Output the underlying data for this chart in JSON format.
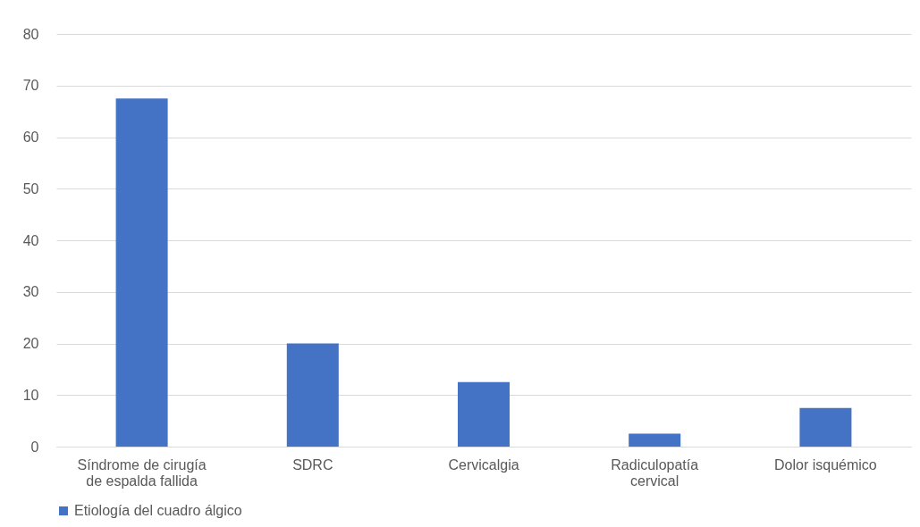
{
  "chart_data": {
    "type": "bar",
    "categories": [
      "Síndrome de cirugía de espalda fallida",
      "SDRC",
      "Cervicalgia",
      "Radiculopatía cervical",
      "Dolor isquémico"
    ],
    "series": [
      {
        "name": "Etiología del cuadro álgico",
        "color": "#4472c4",
        "values": [
          67.5,
          20,
          12.5,
          2.5,
          7.5
        ]
      }
    ],
    "ylim": [
      0,
      80
    ],
    "yticks": [
      0,
      10,
      20,
      30,
      40,
      50,
      60,
      70,
      80
    ],
    "grid": "y",
    "legend": "bottom"
  }
}
